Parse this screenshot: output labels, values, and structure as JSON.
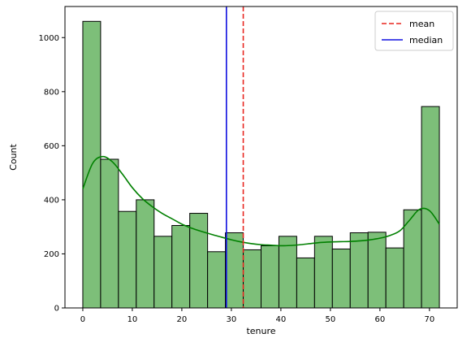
{
  "chart_data": {
    "type": "bar",
    "xlabel": "tenure",
    "ylabel": "Count",
    "xlim": [
      -3.6,
      75.6
    ],
    "ylim": [
      0,
      1115
    ],
    "xticks": [
      0,
      10,
      20,
      30,
      40,
      50,
      60,
      70
    ],
    "yticks": [
      0,
      200,
      400,
      600,
      800,
      1000
    ],
    "bins": {
      "edges": [
        0,
        3.6,
        7.2,
        10.8,
        14.4,
        18,
        21.6,
        25.2,
        28.8,
        32.4,
        36,
        39.6,
        43.2,
        46.8,
        50.4,
        54,
        57.6,
        61.2,
        64.8,
        68.4,
        72
      ],
      "counts": [
        1060,
        550,
        357,
        400,
        265,
        305,
        350,
        208,
        278,
        215,
        230,
        265,
        185,
        265,
        218,
        278,
        280,
        222,
        363,
        745
      ]
    },
    "kde": {
      "x": [
        0,
        2,
        4,
        6,
        8,
        10,
        12,
        14,
        16,
        18,
        20,
        22,
        24,
        26,
        28,
        30,
        32,
        34,
        36,
        38,
        40,
        42,
        44,
        46,
        48,
        50,
        52,
        54,
        56,
        58,
        60,
        62,
        64,
        66,
        68,
        70,
        72
      ],
      "y": [
        440,
        535,
        560,
        540,
        495,
        445,
        405,
        375,
        350,
        330,
        310,
        295,
        283,
        272,
        262,
        252,
        244,
        238,
        234,
        232,
        230,
        231,
        234,
        238,
        242,
        244,
        245,
        246,
        248,
        252,
        258,
        268,
        285,
        325,
        365,
        360,
        310
      ]
    },
    "mean": 32.4,
    "median": 29,
    "colors": {
      "bar_fill": "#7dbf79",
      "bar_edge": "#000000",
      "kde": "#008000",
      "mean": "#e8251f",
      "median": "#1010e0"
    },
    "legend": {
      "position": "top-right",
      "entries": [
        {
          "label": "mean",
          "style": "dashed",
          "color": "#e8251f"
        },
        {
          "label": "median",
          "style": "solid",
          "color": "#1010e0"
        }
      ]
    },
    "grid": false
  }
}
